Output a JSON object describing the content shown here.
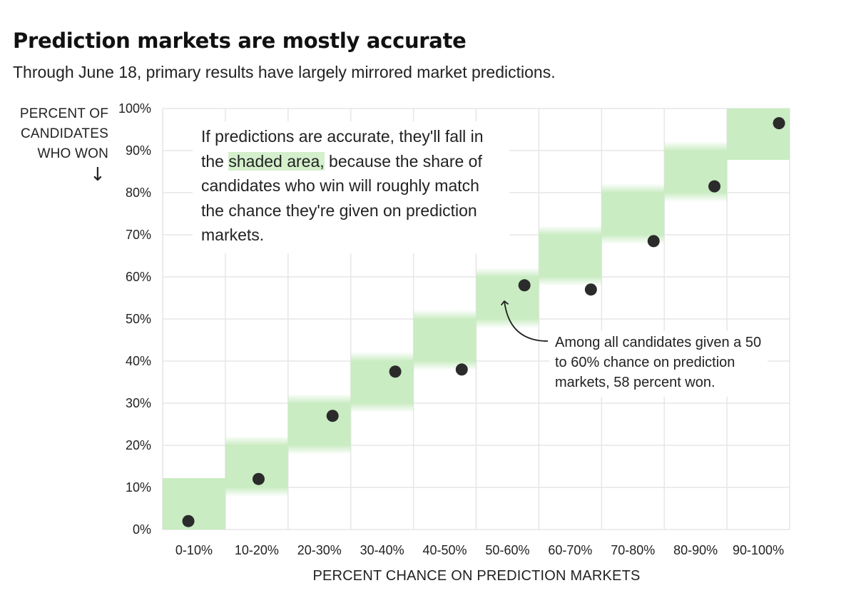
{
  "title": "Prediction markets are mostly accurate",
  "subtitle": "Through June 18, primary results have largely mirrored market predictions.",
  "explainer": {
    "before": "If predictions are accurate, they'll fall in the ",
    "highlight": "shaded area,",
    "after": " because the share of candidates who win will roughly match the chance they're given on prediction markets."
  },
  "annotation": "Among all candidates given a 50 to 60% chance on prediction markets, 58 percent won.",
  "colors": {
    "shade": "#c9ecc2",
    "dot": "#2b2b2b",
    "grid": "#e6e6e6"
  },
  "chart_data": {
    "type": "scatter",
    "title": "Prediction markets are mostly accurate",
    "xlabel": "PERCENT CHANCE ON PREDICTION MARKETS",
    "ylabel_lines": [
      "PERCENT OF",
      "CANDIDATES",
      "WHO WON"
    ],
    "ylabel_arrow": "↓",
    "categories": [
      "0-10%",
      "10-20%",
      "20-30%",
      "30-40%",
      "40-50%",
      "50-60%",
      "60-70%",
      "70-80%",
      "80-90%",
      "90-100%"
    ],
    "values": [
      2,
      12,
      27,
      37.5,
      38,
      58,
      57,
      68.5,
      81.5,
      96.5
    ],
    "x_offsets": [
      -0.15,
      0.05,
      0.35,
      0.35,
      0.45,
      0.45,
      0.55,
      0.55,
      0.5,
      0.55
    ],
    "shaded_bands": [
      [
        0,
        10
      ],
      [
        10,
        20
      ],
      [
        20,
        30
      ],
      [
        30,
        40
      ],
      [
        40,
        50
      ],
      [
        50,
        60
      ],
      [
        60,
        70
      ],
      [
        70,
        80
      ],
      [
        80,
        90
      ],
      [
        90,
        100
      ]
    ],
    "y_ticks": [
      0,
      10,
      20,
      30,
      40,
      50,
      60,
      70,
      80,
      90,
      100
    ],
    "y_tick_labels": [
      "0%",
      "10%",
      "20%",
      "30%",
      "40%",
      "50%",
      "60%",
      "70%",
      "80%",
      "90%",
      "100%"
    ],
    "ylim": [
      0,
      100
    ],
    "grid": true,
    "annotated_category": "50-60%"
  }
}
